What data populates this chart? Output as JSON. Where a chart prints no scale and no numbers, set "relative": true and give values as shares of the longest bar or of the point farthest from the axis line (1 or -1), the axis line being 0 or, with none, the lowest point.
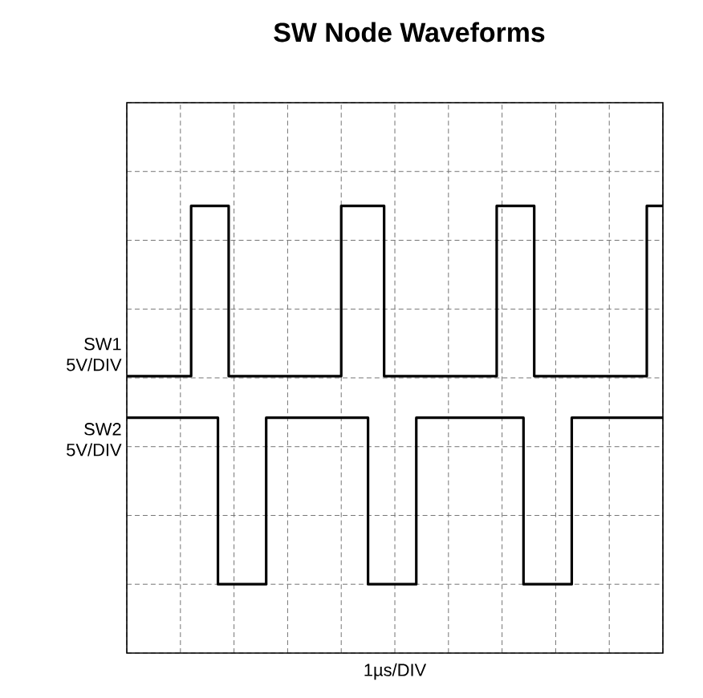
{
  "chart_data": {
    "type": "step",
    "title": "SW Node Waveforms",
    "xlabel": "1µs/DIV",
    "relative": true,
    "grid": true,
    "categories": [
      null,
      null,
      null,
      null,
      null,
      null,
      null,
      null,
      null,
      null,
      null,
      null,
      null,
      null,
      null,
      null,
      null,
      null,
      null,
      null,
      null,
      null,
      null,
      null,
      null,
      null,
      null,
      null,
      null,
      null,
      null,
      null,
      null,
      null,
      null,
      null,
      null,
      null,
      null,
      null,
      null,
      null,
      null,
      null,
      null,
      null,
      null,
      null,
      null,
      null,
      null,
      null,
      null,
      null,
      null,
      null,
      null,
      null,
      null,
      null,
      null,
      null,
      null,
      null,
      null,
      null,
      null,
      null,
      null,
      null,
      null,
      null,
      null,
      null,
      null,
      null,
      null,
      null,
      null,
      null,
      null,
      null,
      null,
      null,
      null,
      null,
      null,
      null,
      null,
      null,
      null,
      null,
      null,
      null,
      null,
      null,
      null,
      null,
      null,
      null,
      null
    ],
    "series": [
      {
        "name": "SW1",
        "color": "#000000",
        "values": [
          0.55,
          0.55,
          0.55,
          0.55,
          0.55,
          0.55,
          0.55,
          0.55,
          0.55,
          0.55,
          0.55,
          0.55,
          1.0,
          1.0,
          1.0,
          1.0,
          1.0,
          1.0,
          1.0,
          0.55,
          0.55,
          0.55,
          0.55,
          0.55,
          0.55,
          0.55,
          0.55,
          0.55,
          0.55,
          0.55,
          0.55,
          0.55,
          0.55,
          0.55,
          0.55,
          0.55,
          0.55,
          0.55,
          0.55,
          0.55,
          1.0,
          1.0,
          1.0,
          1.0,
          1.0,
          1.0,
          1.0,
          1.0,
          0.55,
          0.55,
          0.55,
          0.55,
          0.55,
          0.55,
          0.55,
          0.55,
          0.55,
          0.55,
          0.55,
          0.55,
          0.55,
          0.55,
          0.55,
          0.55,
          0.55,
          0.55,
          0.55,
          0.55,
          0.55,
          1.0,
          1.0,
          1.0,
          1.0,
          1.0,
          1.0,
          1.0,
          0.55,
          0.55,
          0.55,
          0.55,
          0.55,
          0.55,
          0.55,
          0.55,
          0.55,
          0.55,
          0.55,
          0.55,
          0.55,
          0.55,
          0.55,
          0.55,
          0.55,
          0.55,
          0.55,
          0.55,
          0.55,
          1.0,
          1.0,
          1.0,
          1.0
        ]
      },
      {
        "name": "SW2",
        "color": "#000000",
        "values": [
          0.44,
          0.44,
          0.44,
          0.44,
          0.44,
          0.44,
          0.44,
          0.44,
          0.44,
          0.44,
          0.44,
          0.44,
          0.44,
          0.44,
          0.44,
          0.44,
          0.44,
          0,
          0,
          0,
          0,
          0,
          0,
          0,
          0,
          0,
          0.44,
          0.44,
          0.44,
          0.44,
          0.44,
          0.44,
          0.44,
          0.44,
          0.44,
          0.44,
          0.44,
          0.44,
          0.44,
          0.44,
          0.44,
          0.44,
          0.44,
          0.44,
          0.44,
          0,
          0,
          0,
          0,
          0,
          0,
          0,
          0,
          0,
          0.44,
          0.44,
          0.44,
          0.44,
          0.44,
          0.44,
          0.44,
          0.44,
          0.44,
          0.44,
          0.44,
          0.44,
          0.44,
          0.44,
          0.44,
          0.44,
          0.44,
          0.44,
          0.44,
          0.44,
          0,
          0,
          0,
          0,
          0,
          0,
          0,
          0,
          0,
          0.44,
          0.44,
          0.44,
          0.44,
          0.44,
          0.44,
          0.44,
          0.44,
          0.44,
          0.44,
          0.44,
          0.44,
          0.44,
          0.44,
          0.44,
          0.44,
          0.44,
          0.44
        ]
      }
    ],
    "annotations": [
      "5V/DIV",
      "5V/DIV"
    ]
  }
}
